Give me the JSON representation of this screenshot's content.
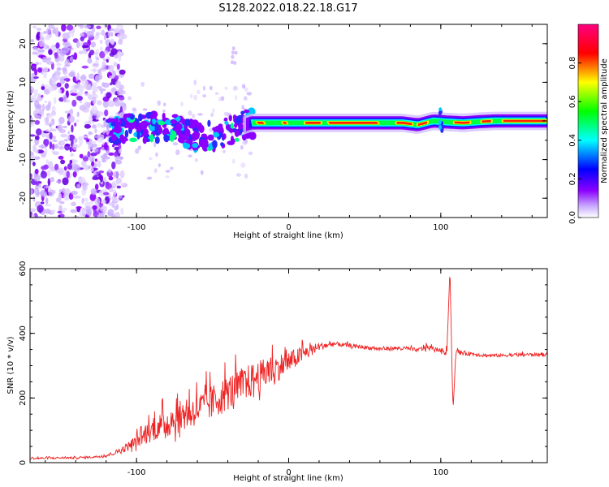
{
  "title": "S128.2022.018.22.18.G17",
  "chart_data": [
    {
      "type": "heatmap",
      "xlabel": "Height of straight line (km)",
      "ylabel": "Frequency (Hz)",
      "xlim": [
        -170,
        170
      ],
      "ylim": [
        -25,
        25
      ],
      "xticks": [
        -100,
        0,
        100
      ],
      "yticks": [
        -20,
        -10,
        0,
        10,
        20
      ],
      "colorbar": {
        "label": "Normalized spectral amplitude",
        "range": [
          0,
          1
        ],
        "ticks": [
          "0.0",
          "0.2",
          "0.4",
          "0.6",
          "0.8"
        ],
        "colormap": [
          "#ffffff",
          "#8b00ff",
          "#0000ff",
          "#00ffff",
          "#00ff00",
          "#ffff00",
          "#ff0000",
          "#ff0080"
        ]
      },
      "ridge": {
        "x": [
          -115,
          -105,
          -95,
          -85,
          -75,
          -65,
          -55,
          -45,
          -35,
          -25,
          -15,
          -5,
          5,
          15,
          25,
          35,
          45,
          55,
          65,
          75,
          85,
          95,
          105,
          115,
          125,
          135,
          145,
          155,
          165,
          170
        ],
        "y": [
          -3,
          -2,
          -2,
          -1.5,
          -2,
          -3.5,
          -4,
          -3.5,
          -2,
          -0.5,
          -0.5,
          -0.5,
          -0.5,
          -0.5,
          -0.5,
          -0.5,
          -0.5,
          -0.5,
          -0.5,
          -0.5,
          -1,
          0,
          -0.3,
          -0.5,
          -0.2,
          0,
          0,
          0,
          0,
          0
        ]
      }
    },
    {
      "type": "line",
      "xlabel": "Height of straight line (km)",
      "ylabel": "SNR (10 * v/v)",
      "xlim": [
        -170,
        170
      ],
      "ylim": [
        0,
        600
      ],
      "xticks": [
        -100,
        0,
        100
      ],
      "yticks": [
        0,
        200,
        400,
        600
      ],
      "color": "#ee2222",
      "series": [
        {
          "x": [
            -170,
            -160,
            -150,
            -140,
            -130,
            -120,
            -110,
            -100,
            -90,
            -80,
            -70,
            -60,
            -50,
            -40,
            -30,
            -20,
            -10,
            0,
            10,
            20,
            30,
            40,
            50,
            60,
            70,
            80,
            85,
            90,
            95,
            100,
            104,
            106,
            108,
            110,
            120,
            130,
            140,
            150,
            160,
            170
          ],
          "y": [
            12,
            13,
            14,
            14,
            16,
            20,
            35,
            60,
            90,
            110,
            130,
            150,
            170,
            200,
            225,
            250,
            275,
            300,
            330,
            355,
            365,
            360,
            355,
            350,
            352,
            350,
            345,
            355,
            350,
            345,
            340,
            600,
            160,
            340,
            335,
            330,
            330,
            332,
            333,
            333
          ],
          "noise_amplitude": [
            6,
            6,
            6,
            6,
            6,
            8,
            20,
            40,
            70,
            90,
            100,
            100,
            110,
            110,
            110,
            100,
            90,
            70,
            50,
            25,
            15,
            12,
            12,
            12,
            12,
            12,
            12,
            25,
            12,
            12,
            30,
            0,
            30,
            15,
            12,
            10,
            10,
            10,
            10,
            10
          ]
        }
      ]
    }
  ]
}
